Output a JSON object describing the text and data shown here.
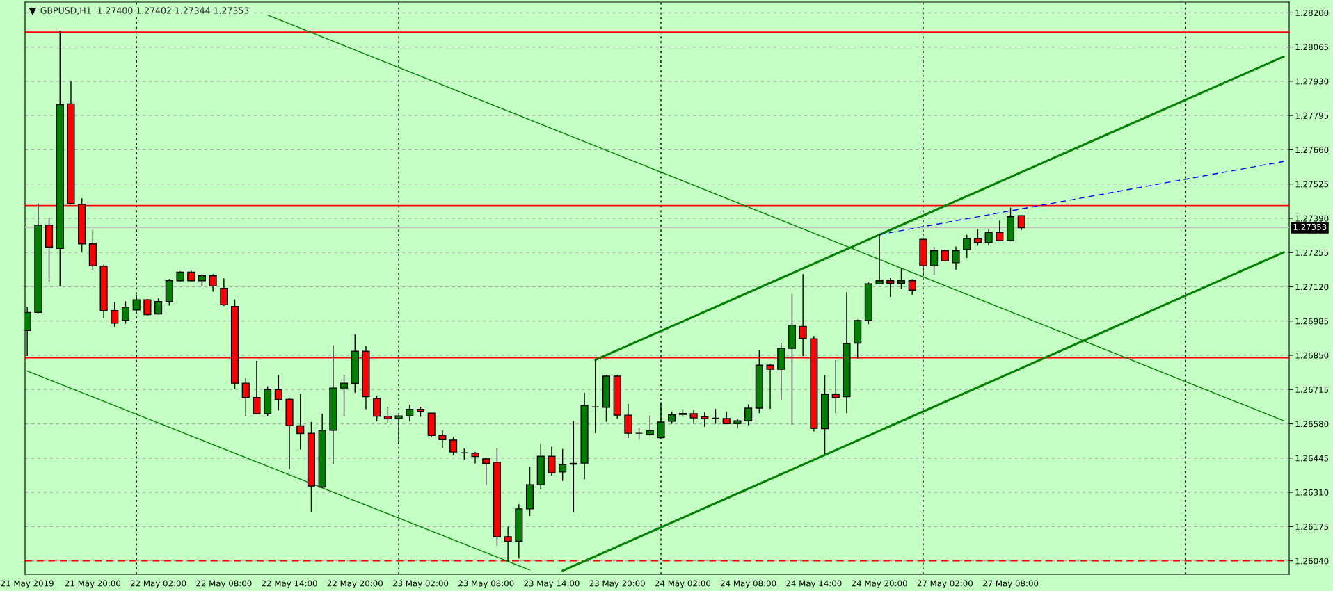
{
  "chart_data": {
    "type": "candlestick",
    "title": "GBPUSD,H1  1.27400 1.27402 1.27344 1.27353",
    "categories": [
      "21 May 2019",
      null,
      null,
      null,
      null,
      null,
      "21 May 20:00",
      null,
      null,
      null,
      null,
      null,
      "22 May 02:00",
      null,
      null,
      null,
      null,
      null,
      "22 May 08:00",
      null,
      null,
      null,
      null,
      null,
      "22 May 14:00",
      null,
      null,
      null,
      null,
      null,
      "22 May 20:00",
      null,
      null,
      null,
      null,
      null,
      "23 May 02:00",
      null,
      null,
      null,
      null,
      null,
      "23 May 08:00",
      null,
      null,
      null,
      null,
      null,
      "23 May 14:00",
      null,
      null,
      null,
      null,
      null,
      "23 May 20:00",
      null,
      null,
      null,
      null,
      null,
      "24 May 02:00",
      null,
      null,
      null,
      null,
      null,
      "24 May 08:00",
      null,
      null,
      null,
      null,
      null,
      "24 May 14:00",
      null,
      null,
      null,
      null,
      null,
      "24 May 20:00",
      null,
      null,
      null,
      null,
      null,
      "27 May 02:00",
      null,
      null,
      null,
      null,
      null,
      "27 May 08:00",
      null,
      null,
      null,
      null,
      null,
      null,
      null,
      null,
      null,
      null,
      null,
      null,
      null,
      null,
      null,
      null,
      null,
      null,
      null,
      null,
      null,
      null,
      null,
      null,
      null
    ],
    "ohlc": [
      [
        1.26948,
        1.27041,
        1.26848,
        1.27019
      ],
      [
        1.27019,
        1.27448,
        1.27016,
        1.27363
      ],
      [
        1.27363,
        1.27394,
        1.27141,
        1.27276
      ],
      [
        1.27271,
        1.2813,
        1.27123,
        1.27838
      ],
      [
        1.27841,
        1.2793,
        1.27445,
        1.27448
      ],
      [
        1.27445,
        1.27469,
        1.27257,
        1.27289
      ],
      [
        1.27289,
        1.27345,
        1.27185,
        1.27203
      ],
      [
        1.27201,
        1.27207,
        1.26997,
        1.27026
      ],
      [
        1.27026,
        1.27059,
        1.26962,
        1.26977
      ],
      [
        1.26988,
        1.27063,
        1.26975,
        1.2704
      ],
      [
        1.27029,
        1.27088,
        1.27024,
        1.27069
      ],
      [
        1.27069,
        1.27072,
        1.27007,
        1.2701
      ],
      [
        1.27013,
        1.27075,
        1.2701,
        1.27062
      ],
      [
        1.27062,
        1.2715,
        1.27046,
        1.27144
      ],
      [
        1.27144,
        1.27181,
        1.27141,
        1.27178
      ],
      [
        1.27178,
        1.27184,
        1.27142,
        1.27144
      ],
      [
        1.27144,
        1.27169,
        1.27123,
        1.27163
      ],
      [
        1.27163,
        1.27169,
        1.27101,
        1.27123
      ],
      [
        1.27114,
        1.27153,
        1.27044,
        1.27049
      ],
      [
        1.27043,
        1.2707,
        1.26716,
        1.2674
      ],
      [
        1.2674,
        1.26761,
        1.2661,
        1.26684
      ],
      [
        1.26684,
        1.26828,
        1.26617,
        1.2662
      ],
      [
        1.2662,
        1.26728,
        1.26611,
        1.26715
      ],
      [
        1.26715,
        1.26772,
        1.26633,
        1.26676
      ],
      [
        1.26676,
        1.2668,
        1.26402,
        1.26573
      ],
      [
        1.26572,
        1.26697,
        1.26479,
        1.26542
      ],
      [
        1.26543,
        1.26587,
        1.26234,
        1.26335
      ],
      [
        1.26331,
        1.2662,
        1.26328,
        1.26555
      ],
      [
        1.26555,
        1.2689,
        1.26421,
        1.26721
      ],
      [
        1.26721,
        1.26773,
        1.26608,
        1.2674
      ],
      [
        1.26739,
        1.26932,
        1.26702,
        1.26866
      ],
      [
        1.26866,
        1.26887,
        1.26637,
        1.26687
      ],
      [
        1.2668,
        1.26691,
        1.2659,
        1.2661
      ],
      [
        1.2661,
        1.26647,
        1.26582,
        1.266
      ],
      [
        1.26601,
        1.26614,
        1.26499,
        1.26611
      ],
      [
        1.26611,
        1.26654,
        1.2659,
        1.26637
      ],
      [
        1.26637,
        1.26647,
        1.26608,
        1.26629
      ],
      [
        1.26622,
        1.26623,
        1.26528,
        1.26534
      ],
      [
        1.26534,
        1.26555,
        1.26485,
        1.26518
      ],
      [
        1.26516,
        1.26528,
        1.26457,
        1.26469
      ],
      [
        1.26466,
        1.26483,
        1.26439,
        1.26466
      ],
      [
        1.26464,
        1.26469,
        1.26424,
        1.26451
      ],
      [
        1.26442,
        1.26445,
        1.26338,
        1.26424
      ],
      [
        1.26429,
        1.26484,
        1.26098,
        1.26135
      ],
      [
        1.26135,
        1.26175,
        1.26039,
        1.26117
      ],
      [
        1.26117,
        1.26264,
        1.26049,
        1.26245
      ],
      [
        1.26245,
        1.2641,
        1.26217,
        1.2634
      ],
      [
        1.2634,
        1.26503,
        1.26324,
        1.26452
      ],
      [
        1.26452,
        1.2649,
        1.26376,
        1.26387
      ],
      [
        1.2639,
        1.26481,
        1.26355,
        1.2642
      ],
      [
        1.26421,
        1.26591,
        1.26231,
        1.26424
      ],
      [
        1.26425,
        1.26702,
        1.26362,
        1.26651
      ],
      [
        1.26647,
        1.26832,
        1.26543,
        1.26647
      ],
      [
        1.26645,
        1.26773,
        1.26588,
        1.26768
      ],
      [
        1.26768,
        1.26772,
        1.266,
        1.26614
      ],
      [
        1.26614,
        1.26659,
        1.26524,
        1.26543
      ],
      [
        1.26543,
        1.26565,
        1.26518,
        1.26543
      ],
      [
        1.26538,
        1.26613,
        1.26532,
        1.26553
      ],
      [
        1.26525,
        1.26665,
        1.26521,
        1.26587
      ],
      [
        1.2659,
        1.26629,
        1.2658,
        1.26616
      ],
      [
        1.26617,
        1.26638,
        1.26611,
        1.26621
      ],
      [
        1.2662,
        1.26635,
        1.2658,
        1.26603
      ],
      [
        1.26608,
        1.26627,
        1.26568,
        1.26601
      ],
      [
        1.26602,
        1.26639,
        1.2658,
        1.26602
      ],
      [
        1.26601,
        1.26629,
        1.26578,
        1.26581
      ],
      [
        1.26581,
        1.26601,
        1.26562,
        1.26592
      ],
      [
        1.26592,
        1.26657,
        1.26574,
        1.26642
      ],
      [
        1.26642,
        1.26869,
        1.26622,
        1.26811
      ],
      [
        1.26811,
        1.26816,
        1.26639,
        1.26795
      ],
      [
        1.26795,
        1.26899,
        1.26672,
        1.26877
      ],
      [
        1.26877,
        1.27093,
        1.26576,
        1.26969
      ],
      [
        1.26964,
        1.2717,
        1.26847,
        1.26917
      ],
      [
        1.26915,
        1.26926,
        1.2655,
        1.26562
      ],
      [
        1.26561,
        1.26772,
        1.26461,
        1.26696
      ],
      [
        1.26696,
        1.26831,
        1.26622,
        1.26684
      ],
      [
        1.26687,
        1.27099,
        1.26622,
        1.26896
      ],
      [
        1.26898,
        1.26991,
        1.26837,
        1.26987
      ],
      [
        1.26987,
        1.27137,
        1.26973,
        1.27132
      ],
      [
        1.27132,
        1.27326,
        1.2713,
        1.27144
      ],
      [
        1.27144,
        1.27154,
        1.2708,
        1.27134
      ],
      [
        1.27134,
        1.27193,
        1.27112,
        1.27144
      ],
      [
        1.27144,
        1.2715,
        1.27089,
        1.27107
      ],
      [
        1.27307,
        1.2731,
        1.27162,
        1.27203
      ],
      [
        1.27203,
        1.27277,
        1.27166,
        1.27262
      ],
      [
        1.27262,
        1.27267,
        1.2722,
        1.27222
      ],
      [
        1.27215,
        1.27278,
        1.27187,
        1.27262
      ],
      [
        1.27267,
        1.27325,
        1.27234,
        1.2731
      ],
      [
        1.2731,
        1.27347,
        1.27282,
        1.27295
      ],
      [
        1.27295,
        1.27347,
        1.27282,
        1.27334
      ],
      [
        1.27334,
        1.27381,
        1.273,
        1.27302
      ],
      [
        1.27302,
        1.27432,
        1.27299,
        1.27396
      ],
      [
        1.274,
        1.27402,
        1.27344,
        1.27353
      ],
      null,
      null,
      null,
      null,
      null,
      null,
      null,
      null,
      null,
      null,
      null,
      null,
      null,
      null,
      null,
      null,
      null,
      null,
      null,
      null,
      null,
      null,
      null,
      null
    ],
    "series": [
      {
        "type": "line",
        "color": "#008000",
        "values": [
          null,
          null,
          null,
          null,
          null,
          null,
          null,
          null,
          null,
          null,
          null,
          null,
          null,
          null,
          null,
          null,
          null,
          null,
          null,
          null,
          null,
          null,
          1.28191,
          null,
          null,
          null,
          null,
          null,
          null,
          null,
          null,
          null,
          null,
          null,
          null,
          null,
          null,
          null,
          null,
          null,
          null,
          null,
          null,
          null,
          null,
          null,
          null,
          null,
          null,
          null,
          null,
          null,
          null,
          null,
          null,
          null,
          null,
          null,
          null,
          null,
          null,
          null,
          null,
          null,
          null,
          null,
          null,
          null,
          null,
          null,
          null,
          null,
          null,
          null,
          null,
          null,
          null,
          null,
          null,
          null,
          null,
          null,
          null,
          null,
          null,
          null,
          null,
          null,
          null,
          null,
          null,
          null,
          null,
          null,
          null,
          null,
          null,
          null,
          null,
          null,
          null,
          null,
          null,
          null,
          null,
          null,
          null,
          null,
          null,
          null,
          null,
          null,
          null,
          null,
          null,
          1.26592
        ]
      },
      {
        "type": "line",
        "color": "#008000",
        "values": [
          1.26788,
          null,
          null,
          null,
          null,
          null,
          null,
          null,
          null,
          null,
          null,
          null,
          null,
          null,
          null,
          null,
          null,
          null,
          null,
          null,
          null,
          null,
          null,
          null,
          null,
          null,
          null,
          null,
          null,
          null,
          null,
          null,
          null,
          null,
          null,
          null,
          null,
          null,
          null,
          null,
          null,
          null,
          null,
          null,
          null,
          null,
          1.26004,
          null,
          null,
          null,
          null,
          null,
          null,
          null,
          null,
          null,
          null,
          null,
          null,
          null,
          null,
          null,
          null,
          null,
          null,
          null,
          null,
          null,
          null,
          null,
          null,
          null,
          null,
          null,
          null,
          null,
          null,
          null,
          null,
          null,
          null,
          null,
          null,
          null,
          null,
          null,
          null,
          null,
          null,
          null,
          null,
          null,
          null,
          null,
          null,
          null,
          null,
          null,
          null,
          null,
          null,
          null,
          null,
          null,
          null,
          null,
          null,
          null,
          null,
          null,
          null,
          null,
          null,
          null,
          null,
          null
        ]
      },
      {
        "type": "line",
        "color": "#008000",
        "values": [
          null,
          null,
          null,
          null,
          null,
          null,
          null,
          null,
          null,
          null,
          null,
          null,
          null,
          null,
          null,
          null,
          null,
          null,
          null,
          null,
          null,
          null,
          null,
          null,
          null,
          null,
          null,
          null,
          null,
          null,
          null,
          null,
          null,
          null,
          null,
          null,
          null,
          null,
          null,
          null,
          null,
          null,
          null,
          null,
          null,
          null,
          null,
          null,
          null,
          null,
          null,
          null,
          1.26832,
          null,
          null,
          null,
          null,
          null,
          null,
          null,
          null,
          null,
          null,
          null,
          null,
          null,
          null,
          null,
          null,
          null,
          null,
          null,
          null,
          null,
          null,
          null,
          null,
          null,
          null,
          null,
          null,
          null,
          null,
          null,
          null,
          null,
          null,
          null,
          null,
          null,
          null,
          null,
          null,
          null,
          null,
          null,
          null,
          null,
          null,
          null,
          null,
          null,
          null,
          null,
          null,
          null,
          null,
          null,
          null,
          null,
          null,
          null,
          null,
          null,
          null,
          1.28027
        ]
      },
      {
        "type": "line",
        "color": "#008000",
        "values": [
          null,
          null,
          null,
          null,
          null,
          null,
          null,
          null,
          null,
          null,
          null,
          null,
          null,
          null,
          null,
          null,
          null,
          null,
          null,
          null,
          null,
          null,
          null,
          null,
          null,
          null,
          null,
          null,
          null,
          null,
          null,
          null,
          null,
          null,
          null,
          null,
          null,
          null,
          null,
          null,
          null,
          null,
          null,
          null,
          null,
          null,
          null,
          null,
          null,
          1.26001,
          null,
          null,
          null,
          null,
          null,
          null,
          null,
          null,
          null,
          null,
          null,
          null,
          null,
          null,
          null,
          null,
          null,
          null,
          null,
          null,
          null,
          null,
          null,
          null,
          null,
          null,
          null,
          null,
          null,
          null,
          null,
          null,
          null,
          null,
          null,
          null,
          null,
          null,
          null,
          null,
          null,
          null,
          null,
          null,
          null,
          null,
          null,
          null,
          null,
          null,
          null,
          null,
          null,
          null,
          null,
          null,
          null,
          null,
          null,
          null,
          null,
          null,
          null,
          null,
          null,
          1.27256
        ]
      },
      {
        "type": "line",
        "color": "#0000ff",
        "line_style": "dashed",
        "values": [
          null,
          null,
          null,
          null,
          null,
          null,
          null,
          null,
          null,
          null,
          null,
          null,
          null,
          null,
          null,
          null,
          null,
          null,
          null,
          null,
          null,
          null,
          null,
          null,
          null,
          null,
          null,
          null,
          null,
          null,
          null,
          null,
          null,
          null,
          null,
          null,
          null,
          null,
          null,
          null,
          null,
          null,
          null,
          null,
          null,
          null,
          null,
          null,
          null,
          null,
          null,
          null,
          null,
          null,
          null,
          null,
          null,
          null,
          null,
          null,
          null,
          null,
          null,
          null,
          null,
          null,
          null,
          null,
          null,
          null,
          null,
          null,
          null,
          null,
          null,
          null,
          null,
          null,
          1.27326,
          null,
          null,
          null,
          null,
          null,
          null,
          null,
          null,
          null,
          null,
          null,
          null,
          null,
          null,
          null,
          null,
          null,
          null,
          null,
          null,
          null,
          null,
          null,
          null,
          null,
          null,
          null,
          null,
          null,
          null,
          null,
          null,
          null,
          null,
          null,
          null,
          1.27614
        ]
      }
    ],
    "ref_lines": [
      {
        "axis": "y",
        "value": 1.28124,
        "color": "#ff0000"
      },
      {
        "axis": "y",
        "value": 1.2744,
        "color": "#ff0000"
      },
      {
        "axis": "y",
        "value": 1.2684,
        "color": "#ff0000"
      },
      {
        "axis": "y",
        "value": 1.2604,
        "color": "#ff0000",
        "line_style": "dashed"
      },
      {
        "axis": "y",
        "value": 1.27353,
        "color": "#c0c0c0",
        "label": "1.27353"
      }
    ],
    "ylim": [
      1.25987,
      1.28242
    ],
    "yticks": [
      {
        "value": 1.2604,
        "label": "1.26040"
      },
      {
        "value": 1.26175,
        "label": "1.26175"
      },
      {
        "value": 1.2631,
        "label": "1.26310"
      },
      {
        "value": 1.26445,
        "label": "1.26445"
      },
      {
        "value": 1.2658,
        "label": "1.26580"
      },
      {
        "value": 1.26715,
        "label": "1.26715"
      },
      {
        "value": 1.2685,
        "label": "1.26850"
      },
      {
        "value": 1.26985,
        "label": "1.26985"
      },
      {
        "value": 1.2712,
        "label": "1.27120"
      },
      {
        "value": 1.27255,
        "label": "1.27255"
      },
      {
        "value": 1.2739,
        "label": "1.27390"
      },
      {
        "value": 1.27525,
        "label": "1.27525"
      },
      {
        "value": 1.2766,
        "label": "1.27660"
      },
      {
        "value": 1.27795,
        "label": "1.27795"
      },
      {
        "value": 1.2793,
        "label": "1.27930"
      },
      {
        "value": 1.28065,
        "label": "1.28065"
      },
      {
        "value": 1.282,
        "label": "1.28200"
      }
    ],
    "grid": true
  }
}
